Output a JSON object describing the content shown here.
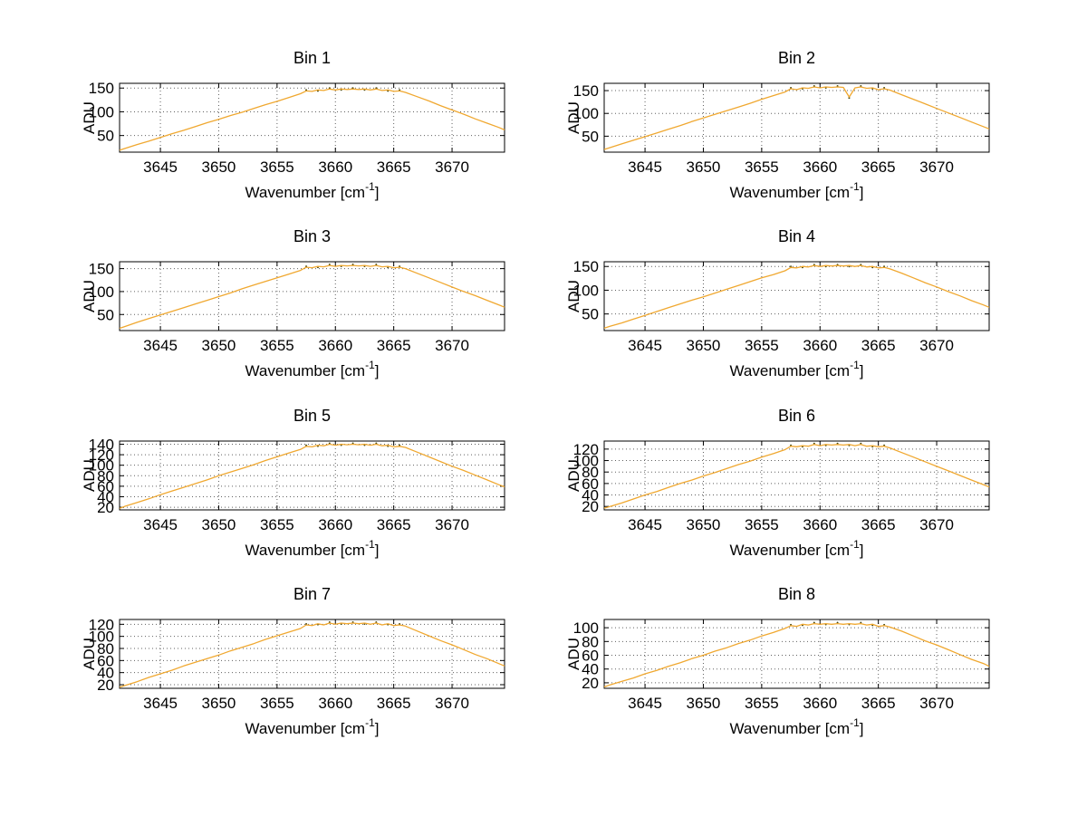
{
  "figure": {
    "background": "#ffffff",
    "line_color": "#f0a830",
    "marker_color": "#45450e",
    "grid_color": "#606060",
    "axis_color": "#000000"
  },
  "chart_data": {
    "type": "line",
    "xlabel_prefix": "Wavenumber [cm",
    "xlabel_sup": "-1",
    "xlabel_suffix": "]",
    "ylabel": "ADU",
    "grid": true,
    "legend": "none",
    "xlim": [
      3641.5,
      3674.5
    ],
    "xticks": [
      3645,
      3650,
      3655,
      3660,
      3665,
      3670
    ],
    "x": [
      3641.5,
      3642,
      3643,
      3644,
      3645,
      3646,
      3647,
      3648,
      3649,
      3650,
      3651,
      3652,
      3653,
      3654,
      3655,
      3656,
      3657,
      3657.5,
      3658,
      3658.5,
      3659,
      3659.5,
      3660,
      3660.5,
      3661,
      3661.5,
      3662,
      3662.5,
      3663,
      3663.5,
      3664,
      3664.5,
      3665,
      3665.5,
      3666,
      3667,
      3668,
      3669,
      3670,
      3671,
      3672,
      3673,
      3674,
      3674.5
    ],
    "subplots": [
      {
        "title": "Bin 1",
        "yticks": [
          50,
          100,
          150
        ],
        "ylim": [
          15,
          160
        ],
        "y": [
          19,
          23,
          31,
          38,
          46,
          54,
          61,
          69,
          77,
          84,
          92,
          99,
          107,
          115,
          122,
          130,
          138,
          144,
          143,
          146,
          145,
          148,
          146,
          148,
          147,
          148,
          147,
          148,
          146,
          148,
          145,
          146,
          143,
          144,
          141,
          132,
          123,
          113,
          104,
          95,
          85,
          76,
          67,
          62
        ]
      },
      {
        "title": "Bin 2",
        "yticks": [
          50,
          100,
          150
        ],
        "ylim": [
          15,
          166
        ],
        "y": [
          21,
          25,
          33,
          41,
          49,
          57,
          65,
          73,
          82,
          90,
          98,
          106,
          114,
          122,
          131,
          139,
          147,
          154,
          152,
          156,
          155,
          158,
          156,
          158,
          157,
          158,
          157,
          136,
          156,
          158,
          155,
          156,
          152,
          154,
          151,
          141,
          131,
          121,
          111,
          101,
          91,
          81,
          71,
          66
        ]
      },
      {
        "title": "Bin 3",
        "yticks": [
          50,
          100,
          150
        ],
        "ylim": [
          15,
          165
        ],
        "y": [
          20,
          24,
          33,
          41,
          49,
          57,
          65,
          73,
          81,
          89,
          97,
          106,
          114,
          122,
          130,
          138,
          146,
          153,
          152,
          155,
          154,
          157,
          155,
          157,
          156,
          157,
          156,
          157,
          155,
          157,
          154,
          155,
          152,
          153,
          150,
          140,
          130,
          120,
          110,
          100,
          91,
          81,
          71,
          66
        ]
      },
      {
        "title": "Bin 4",
        "yticks": [
          50,
          100,
          150
        ],
        "ylim": [
          15,
          160
        ],
        "y": [
          20,
          24,
          31,
          39,
          47,
          55,
          63,
          71,
          79,
          86,
          94,
          102,
          110,
          118,
          126,
          133,
          141,
          148,
          147,
          150,
          149,
          152,
          150,
          152,
          151,
          152,
          151,
          152,
          150,
          152,
          149,
          150,
          147,
          148,
          145,
          136,
          126,
          116,
          107,
          97,
          88,
          78,
          69,
          64
        ]
      },
      {
        "title": "Bin 5",
        "yticks": [
          20,
          40,
          60,
          80,
          100,
          120,
          140
        ],
        "ylim": [
          15,
          146
        ],
        "y": [
          18,
          22,
          29,
          36,
          44,
          51,
          58,
          65,
          72,
          80,
          87,
          94,
          101,
          109,
          116,
          123,
          130,
          136,
          135,
          138,
          137,
          140,
          138,
          140,
          139,
          140,
          139,
          140,
          138,
          140,
          137,
          138,
          135,
          136,
          134,
          125,
          116,
          107,
          98,
          90,
          81,
          72,
          63,
          59
        ]
      },
      {
        "title": "Bin 6",
        "yticks": [
          20,
          40,
          60,
          80,
          100,
          120
        ],
        "ylim": [
          14,
          134
        ],
        "y": [
          17,
          20,
          26,
          33,
          40,
          46,
          53,
          60,
          66,
          73,
          79,
          86,
          93,
          99,
          106,
          112,
          119,
          125,
          124,
          126,
          125,
          128,
          126,
          128,
          127,
          128,
          127,
          128,
          126,
          128,
          125,
          126,
          124,
          125,
          122,
          114,
          106,
          98,
          90,
          82,
          74,
          66,
          58,
          54
        ]
      },
      {
        "title": "Bin 7",
        "yticks": [
          20,
          40,
          60,
          80,
          100,
          120
        ],
        "ylim": [
          14,
          128
        ],
        "y": [
          16,
          19,
          25,
          32,
          38,
          44,
          51,
          57,
          63,
          69,
          76,
          82,
          88,
          95,
          101,
          107,
          113,
          119,
          118,
          121,
          119,
          122,
          120,
          122,
          121,
          122,
          121,
          122,
          120,
          122,
          119,
          121,
          118,
          119,
          117,
          109,
          101,
          93,
          86,
          78,
          70,
          63,
          55,
          51
        ]
      },
      {
        "title": "Bin 8",
        "yticks": [
          20,
          40,
          60,
          80,
          100
        ],
        "ylim": [
          12,
          112
        ],
        "y": [
          14,
          17,
          22,
          27,
          33,
          38,
          44,
          49,
          55,
          60,
          66,
          71,
          77,
          82,
          88,
          93,
          99,
          103,
          102,
          105,
          104,
          106,
          105,
          106,
          105,
          106,
          105,
          106,
          105,
          106,
          104,
          105,
          102,
          103,
          101,
          95,
          88,
          81,
          75,
          68,
          61,
          54,
          48,
          44
        ]
      }
    ]
  }
}
